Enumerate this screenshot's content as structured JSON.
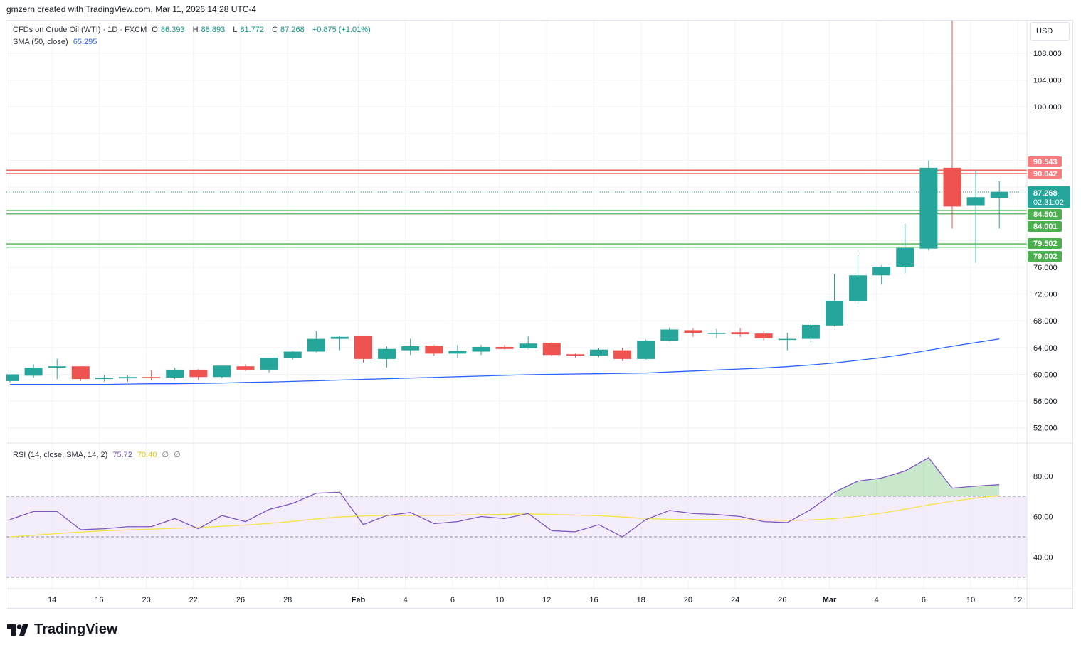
{
  "header": {
    "credit": "gmzern created with TradingView.com, Mar 11, 2026 14:28 UTC-4"
  },
  "legend": {
    "symbol": "CFDs on Crude Oil (WTI) · 1D · FXCM",
    "o_label": "O",
    "o_value": "86.393",
    "h_label": "H",
    "h_value": "88.893",
    "l_label": "L",
    "l_value": "81.772",
    "c_label": "C",
    "c_value": "87.268",
    "change": "+0.875 (+1.01%)",
    "sma_label": "SMA (50, close)",
    "sma_value": "65.295",
    "rsi_label": "RSI (14, close, SMA, 14, 2)",
    "rsi_value": "75.72",
    "rsi_ma_value": "70.40",
    "rsi_extra1": "∅",
    "rsi_extra2": "∅"
  },
  "currency": "USD",
  "brand": "TradingView",
  "colors": {
    "up": "#26a69a",
    "down": "#ef5350",
    "sma": "#2962ff",
    "rsi": "#7e57c2",
    "rsi_ma": "#f5e34a",
    "resistance": "#ef5350",
    "support": "#4caf50"
  },
  "chart_data": [
    {
      "type": "candlestick",
      "title": "CFDs on Crude Oil (WTI) · 1D · FXCM",
      "x_ticks": [
        "14",
        "16",
        "20",
        "22",
        "26",
        "28",
        "Feb",
        "4",
        "6",
        "10",
        "12",
        "16",
        "18",
        "20",
        "24",
        "26",
        "Mar",
        "4",
        "6",
        "10",
        "12"
      ],
      "y_ticks": [
        "52.000",
        "56.000",
        "60.000",
        "64.000",
        "68.000",
        "72.000",
        "76.000",
        "100.000",
        "104.000",
        "108.000"
      ],
      "ylim": [
        49.5,
        110.5
      ],
      "candles": [
        {
          "o": 59.0,
          "h": 60.0,
          "l": 58.8,
          "c": 60.0
        },
        {
          "o": 59.8,
          "h": 61.5,
          "l": 59.5,
          "c": 61.0
        },
        {
          "o": 61.0,
          "h": 62.3,
          "l": 59.3,
          "c": 61.2
        },
        {
          "o": 61.2,
          "h": 61.2,
          "l": 59.0,
          "c": 59.3
        },
        {
          "o": 59.3,
          "h": 59.9,
          "l": 58.9,
          "c": 59.5
        },
        {
          "o": 59.4,
          "h": 59.8,
          "l": 58.9,
          "c": 59.6
        },
        {
          "o": 59.6,
          "h": 60.6,
          "l": 59.1,
          "c": 59.5
        },
        {
          "o": 59.5,
          "h": 61.0,
          "l": 59.3,
          "c": 60.7
        },
        {
          "o": 60.7,
          "h": 60.8,
          "l": 59.1,
          "c": 59.6
        },
        {
          "o": 59.6,
          "h": 61.3,
          "l": 59.4,
          "c": 61.3
        },
        {
          "o": 61.2,
          "h": 61.5,
          "l": 60.5,
          "c": 60.7
        },
        {
          "o": 60.7,
          "h": 62.5,
          "l": 60.3,
          "c": 62.5
        },
        {
          "o": 62.4,
          "h": 63.5,
          "l": 62.2,
          "c": 63.4
        },
        {
          "o": 63.4,
          "h": 66.5,
          "l": 63.3,
          "c": 65.3
        },
        {
          "o": 65.3,
          "h": 65.8,
          "l": 63.6,
          "c": 65.6
        },
        {
          "o": 65.8,
          "h": 65.8,
          "l": 61.8,
          "c": 62.3
        },
        {
          "o": 62.3,
          "h": 64.2,
          "l": 61.0,
          "c": 63.8
        },
        {
          "o": 63.6,
          "h": 65.3,
          "l": 62.9,
          "c": 64.2
        },
        {
          "o": 64.3,
          "h": 64.4,
          "l": 62.8,
          "c": 63.1
        },
        {
          "o": 63.1,
          "h": 64.4,
          "l": 62.4,
          "c": 63.5
        },
        {
          "o": 63.4,
          "h": 64.4,
          "l": 62.9,
          "c": 64.1
        },
        {
          "o": 64.1,
          "h": 64.4,
          "l": 63.7,
          "c": 63.8
        },
        {
          "o": 63.9,
          "h": 65.7,
          "l": 63.8,
          "c": 64.6
        },
        {
          "o": 64.7,
          "h": 64.8,
          "l": 62.7,
          "c": 62.9
        },
        {
          "o": 63.0,
          "h": 63.1,
          "l": 62.5,
          "c": 62.8
        },
        {
          "o": 62.8,
          "h": 63.9,
          "l": 62.6,
          "c": 63.7
        },
        {
          "o": 63.6,
          "h": 64.0,
          "l": 62.0,
          "c": 62.3
        },
        {
          "o": 62.3,
          "h": 65.2,
          "l": 62.2,
          "c": 65.0
        },
        {
          "o": 65.0,
          "h": 67.0,
          "l": 64.9,
          "c": 66.7
        },
        {
          "o": 66.6,
          "h": 66.9,
          "l": 65.6,
          "c": 66.2
        },
        {
          "o": 66.2,
          "h": 66.8,
          "l": 65.4,
          "c": 66.2
        },
        {
          "o": 66.3,
          "h": 66.9,
          "l": 65.6,
          "c": 66.0
        },
        {
          "o": 66.1,
          "h": 66.5,
          "l": 65.1,
          "c": 65.4
        },
        {
          "o": 65.2,
          "h": 66.2,
          "l": 63.6,
          "c": 65.3
        },
        {
          "o": 65.3,
          "h": 67.6,
          "l": 64.8,
          "c": 67.4
        },
        {
          "o": 67.3,
          "h": 75.0,
          "l": 67.2,
          "c": 71.0
        },
        {
          "o": 70.9,
          "h": 77.8,
          "l": 70.5,
          "c": 74.8
        },
        {
          "o": 74.8,
          "h": 76.3,
          "l": 73.4,
          "c": 76.1
        },
        {
          "o": 76.1,
          "h": 82.5,
          "l": 75.1,
          "c": 78.9
        },
        {
          "o": 78.8,
          "h": 92.0,
          "l": 78.5,
          "c": 90.9
        },
        {
          "o": 90.9,
          "h": 119.0,
          "l": 81.8,
          "c": 85.1
        },
        {
          "o": 85.2,
          "h": 90.6,
          "l": 76.7,
          "c": 86.5
        },
        {
          "o": 86.4,
          "h": 88.9,
          "l": 81.8,
          "c": 87.3
        }
      ],
      "sma": [
        58.5,
        58.5,
        58.5,
        58.5,
        58.5,
        58.55,
        58.6,
        58.6,
        58.65,
        58.7,
        58.8,
        58.85,
        58.95,
        59.05,
        59.15,
        59.25,
        59.35,
        59.45,
        59.55,
        59.65,
        59.75,
        59.85,
        59.95,
        60.0,
        60.05,
        60.1,
        60.15,
        60.2,
        60.35,
        60.5,
        60.65,
        60.8,
        60.95,
        61.15,
        61.4,
        61.7,
        62.1,
        62.5,
        63.0,
        63.6,
        64.2,
        64.75,
        65.295
      ],
      "price_levels": [
        {
          "label": "90.543",
          "kind": "resistance",
          "value": 90.543
        },
        {
          "label": "90.042",
          "kind": "resistance",
          "value": 90.042
        },
        {
          "label": "84.501",
          "kind": "support",
          "value": 84.501
        },
        {
          "label": "84.001",
          "kind": "support",
          "value": 84.001
        },
        {
          "label": "79.502",
          "kind": "support",
          "value": 79.502
        },
        {
          "label": "79.002",
          "kind": "support",
          "value": 79.002
        }
      ],
      "last_price": {
        "value": 87.268,
        "label": "87.268",
        "countdown": "02:31:02"
      }
    },
    {
      "type": "line",
      "title": "RSI (14, close, SMA, 14, 2)",
      "y_ticks": [
        "40.00",
        "60.00",
        "80.00"
      ],
      "ylim": [
        25,
        92
      ],
      "band": [
        30,
        70
      ],
      "midline": 50,
      "rsi": [
        58.5,
        62.5,
        62.5,
        53.5,
        54.0,
        55.0,
        55.0,
        59.0,
        54.0,
        60.5,
        57.5,
        63.5,
        66.5,
        71.5,
        72.0,
        56.0,
        60.5,
        62.0,
        56.5,
        57.5,
        60.0,
        59.0,
        61.5,
        53.0,
        52.5,
        56.0,
        50.0,
        58.5,
        63.0,
        61.5,
        61.0,
        60.0,
        57.5,
        57.0,
        63.5,
        72.0,
        77.5,
        79.0,
        82.5,
        89.0,
        74.0,
        75.0,
        75.72
      ],
      "rsi_ma": [
        50.0,
        50.8,
        51.6,
        52.4,
        53.0,
        53.4,
        53.8,
        54.2,
        54.6,
        55.2,
        55.8,
        56.6,
        57.6,
        58.8,
        59.8,
        60.3,
        60.5,
        60.5,
        60.6,
        60.7,
        60.9,
        61.1,
        61.3,
        61.0,
        60.7,
        60.4,
        59.8,
        59.0,
        58.6,
        58.5,
        58.5,
        58.4,
        58.3,
        58.1,
        58.3,
        59.0,
        60.1,
        61.7,
        63.6,
        65.7,
        67.6,
        69.1,
        70.4
      ]
    }
  ]
}
